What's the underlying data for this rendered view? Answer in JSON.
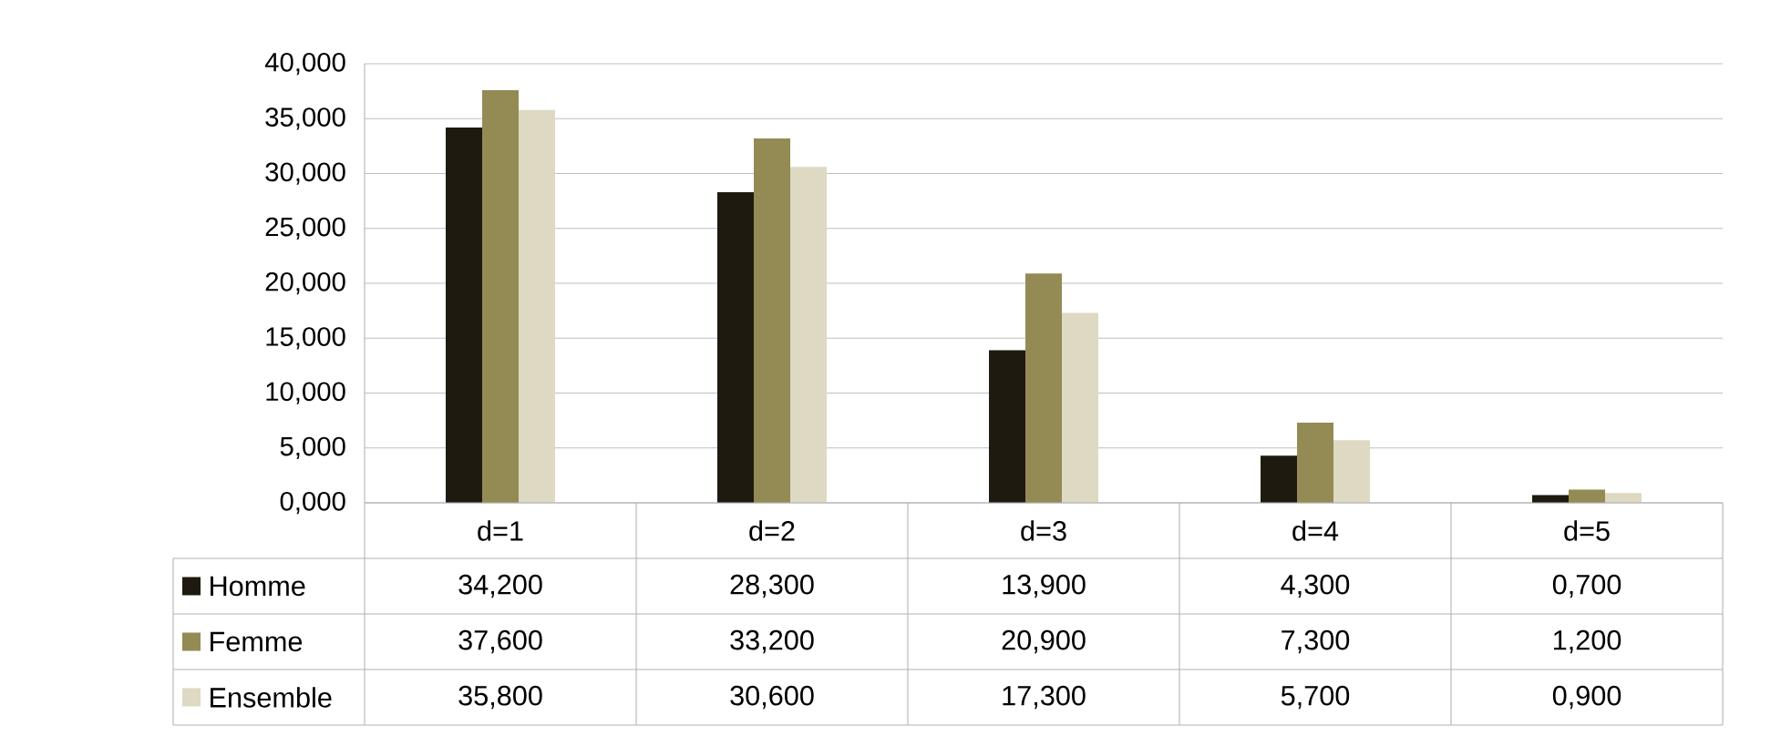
{
  "chart_data": {
    "type": "bar",
    "categories": [
      "d=1",
      "d=2",
      "d=3",
      "d=4",
      "d=5"
    ],
    "series": [
      {
        "name": "Homme",
        "color": "#1f1a10",
        "values": [
          34.2,
          28.3,
          13.9,
          4.3,
          0.7
        ],
        "value_labels": [
          "34,200",
          "28,300",
          "13,900",
          "4,300",
          "0,700"
        ]
      },
      {
        "name": "Femme",
        "color": "#948a54",
        "values": [
          37.6,
          33.2,
          20.9,
          7.3,
          1.2
        ],
        "value_labels": [
          "37,600",
          "33,200",
          "20,900",
          "7,300",
          "1,200"
        ]
      },
      {
        "name": "Ensemble",
        "color": "#ddd9c3",
        "values": [
          35.8,
          30.6,
          17.3,
          5.7,
          0.9
        ],
        "value_labels": [
          "35,800",
          "30,600",
          "17,300",
          "5,700",
          "0,900"
        ]
      }
    ],
    "ylim": [
      0,
      40
    ],
    "yticks": [
      {
        "value": 0,
        "label": "0,000"
      },
      {
        "value": 5,
        "label": "5,000"
      },
      {
        "value": 10,
        "label": "10,000"
      },
      {
        "value": 15,
        "label": "15,000"
      },
      {
        "value": 20,
        "label": "20,000"
      },
      {
        "value": 25,
        "label": "25,000"
      },
      {
        "value": 30,
        "label": "30,000"
      },
      {
        "value": 35,
        "label": "35,000"
      },
      {
        "value": 40,
        "label": "40,000"
      }
    ],
    "grid": "y",
    "legend": "bottom left"
  }
}
